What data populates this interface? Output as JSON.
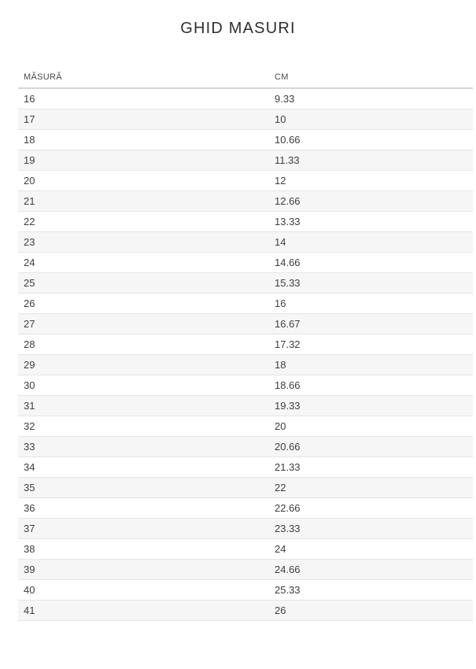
{
  "page": {
    "title": "GHID MASURI"
  },
  "table": {
    "columns": [
      {
        "label": "MĂSURĂ"
      },
      {
        "label": "CM"
      }
    ],
    "rows": [
      {
        "size": "16",
        "cm": "9.33"
      },
      {
        "size": "17",
        "cm": "10"
      },
      {
        "size": "18",
        "cm": "10.66"
      },
      {
        "size": "19",
        "cm": "11.33"
      },
      {
        "size": "20",
        "cm": "12"
      },
      {
        "size": "21",
        "cm": "12.66"
      },
      {
        "size": "22",
        "cm": "13.33"
      },
      {
        "size": "23",
        "cm": "14"
      },
      {
        "size": "24",
        "cm": "14.66"
      },
      {
        "size": "25",
        "cm": "15.33"
      },
      {
        "size": "26",
        "cm": "16"
      },
      {
        "size": "27",
        "cm": "16.67"
      },
      {
        "size": "28",
        "cm": "17.32"
      },
      {
        "size": "29",
        "cm": "18"
      },
      {
        "size": "30",
        "cm": "18.66"
      },
      {
        "size": "31",
        "cm": "19.33"
      },
      {
        "size": "32",
        "cm": "20"
      },
      {
        "size": "33",
        "cm": "20.66"
      },
      {
        "size": "34",
        "cm": "21.33"
      },
      {
        "size": "35",
        "cm": "22"
      },
      {
        "size": "36",
        "cm": "22.66"
      },
      {
        "size": "37",
        "cm": "23.33"
      },
      {
        "size": "38",
        "cm": "24"
      },
      {
        "size": "39",
        "cm": "24.66"
      },
      {
        "size": "40",
        "cm": "25.33"
      },
      {
        "size": "41",
        "cm": "26"
      }
    ]
  },
  "colors": {
    "title_text": "#2e2e2e",
    "header_text": "#4a4a4a",
    "cell_text": "#3e3e3e",
    "stripe_bg": "#f6f6f6",
    "row_border": "#e5e5e5",
    "header_border": "#d6d6d6",
    "page_bg": "#ffffff"
  }
}
